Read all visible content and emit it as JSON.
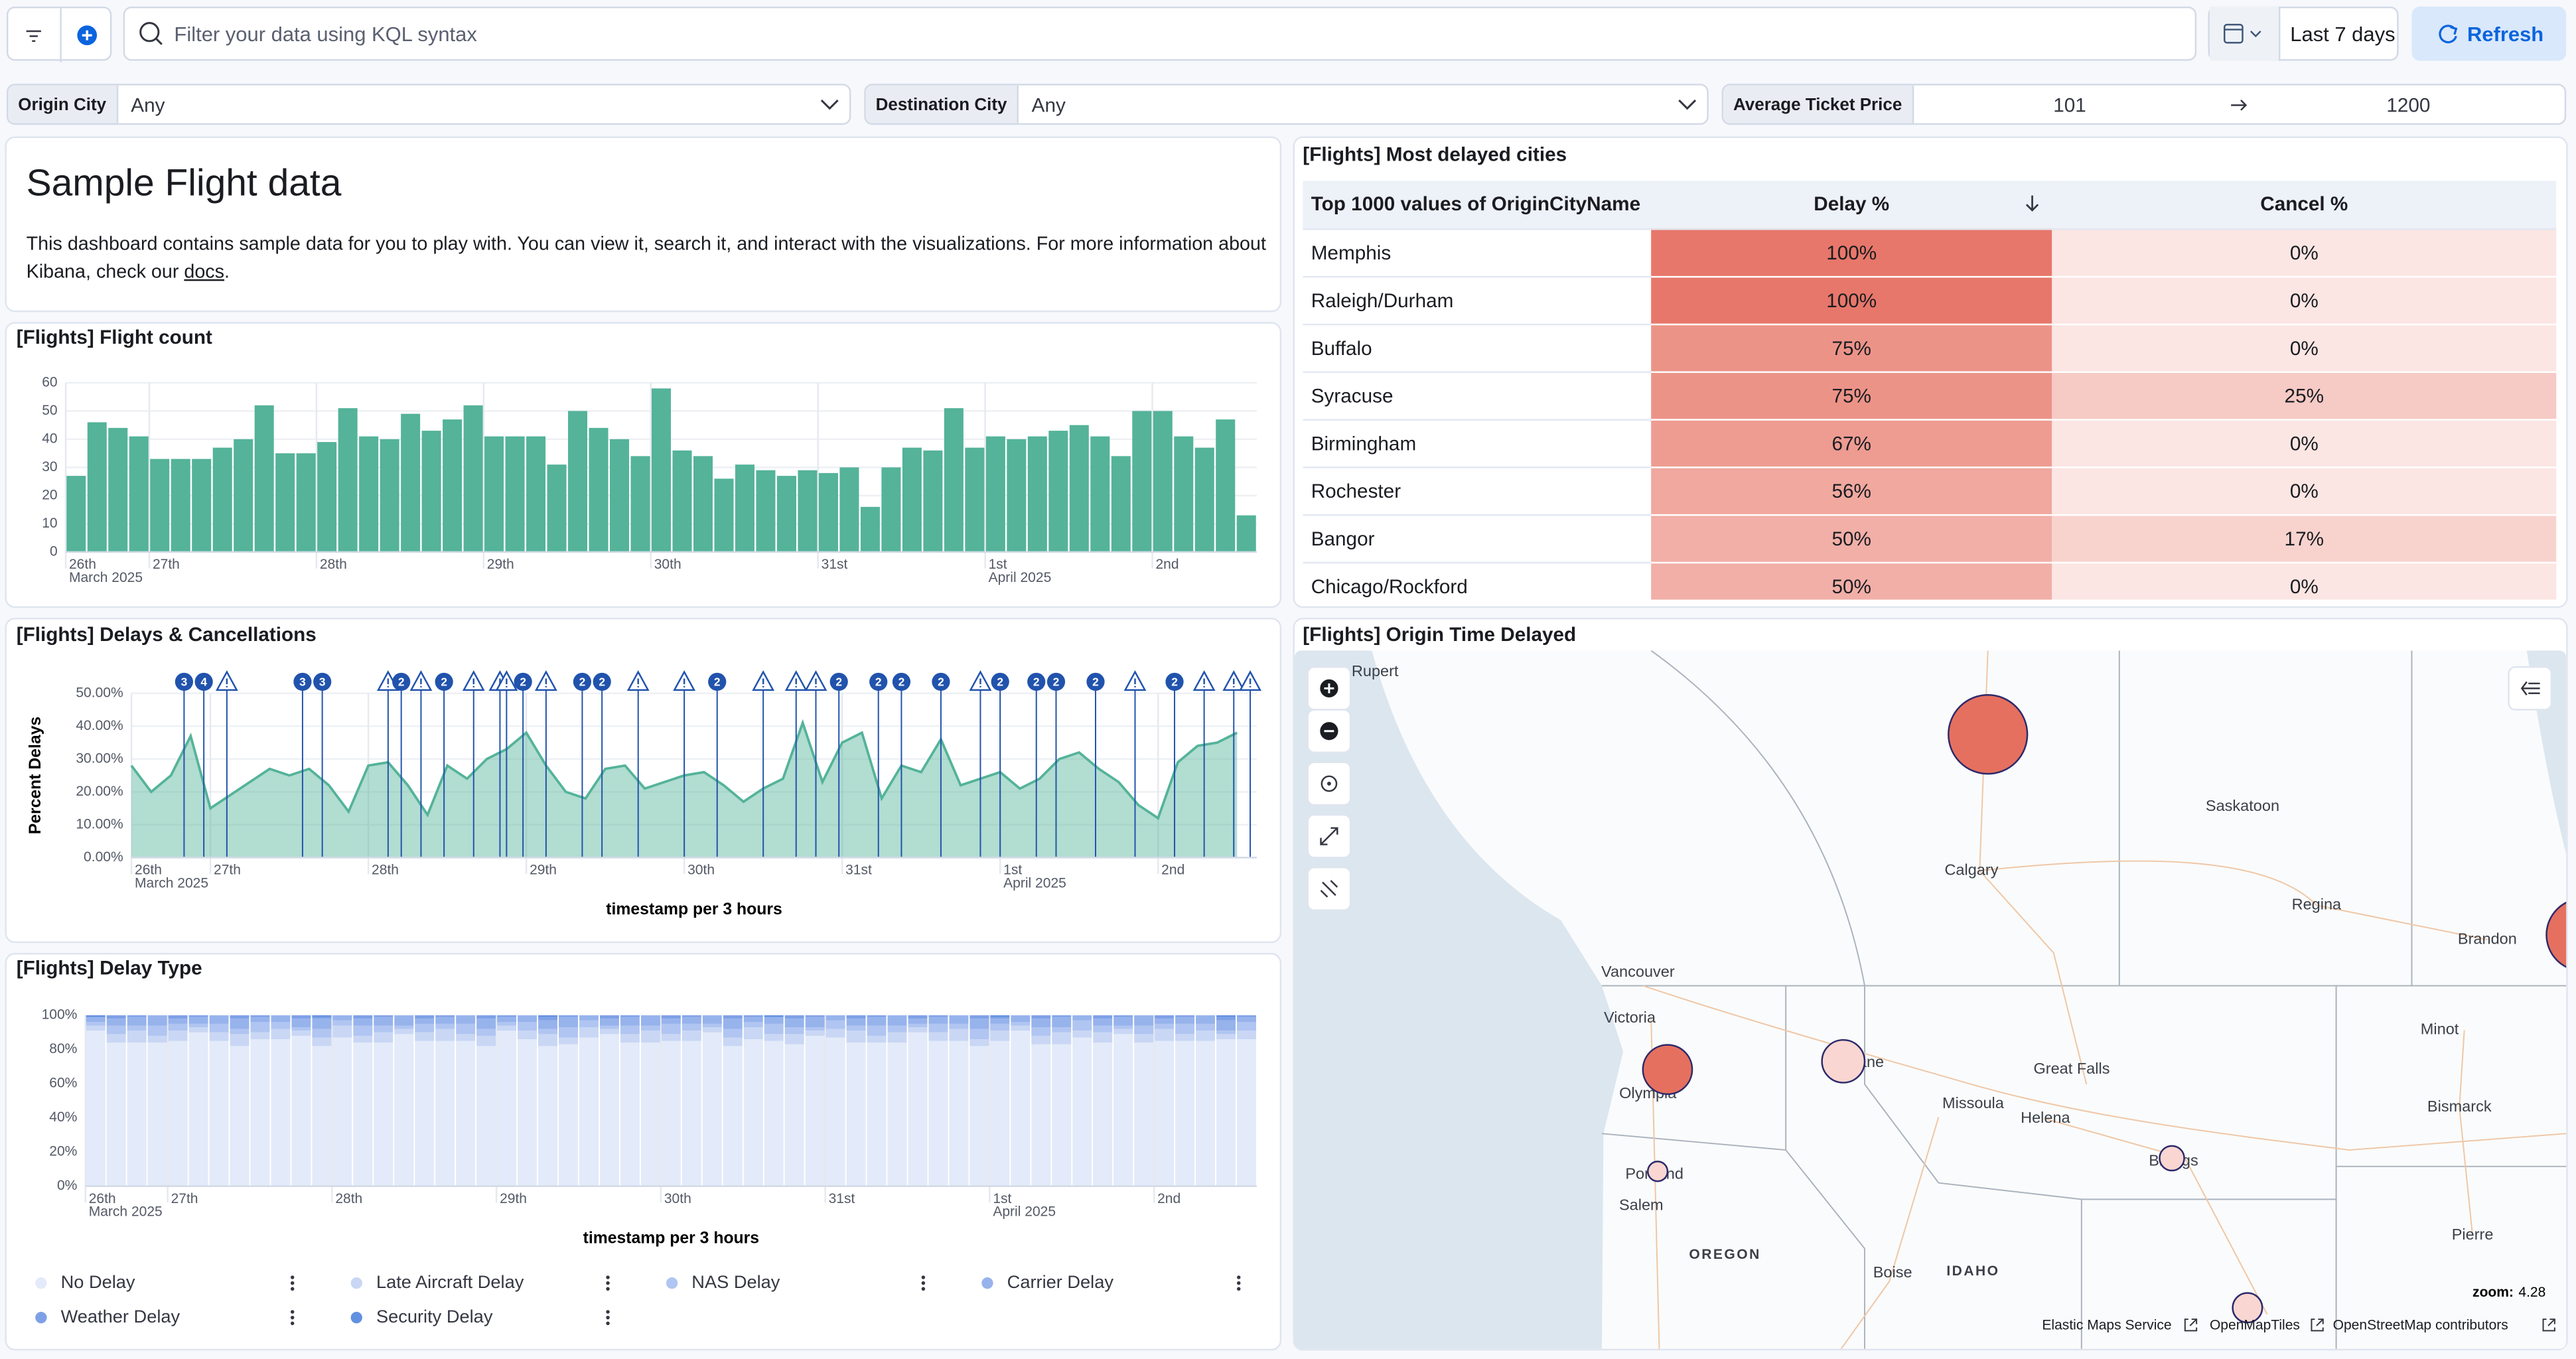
{
  "toolbar": {
    "query_placeholder": "Filter your data using KQL syntax",
    "time_range": "Last 7 days",
    "refresh": "Refresh"
  },
  "controls": {
    "origin_city": {
      "label": "Origin City",
      "value": "Any"
    },
    "destination_city": {
      "label": "Destination City",
      "value": "Any"
    },
    "ticket_price": {
      "label": "Average Ticket Price",
      "min": 101,
      "max": 1200
    }
  },
  "markdown": {
    "title": "Sample Flight data",
    "text": "This dashboard contains sample data for you to play with. You can view it, search it, and interact with the visualizations. For more information about Kibana, check our ",
    "link": "docs",
    "end": "."
  },
  "chart_data": [
    {
      "type": "bar",
      "title": "[Flights] Flight count",
      "x": [
        12,
        15,
        18,
        21,
        24,
        27,
        30,
        33,
        36,
        39,
        42,
        45,
        48,
        51,
        54,
        57,
        60,
        63,
        66,
        69,
        72,
        75,
        78,
        81,
        84,
        87,
        90,
        93,
        96,
        99,
        102,
        105,
        108,
        111,
        114,
        117,
        120,
        123,
        126,
        129,
        132,
        135,
        138,
        141,
        144,
        147,
        150,
        153,
        156,
        159,
        162,
        165,
        168,
        171,
        174,
        177,
        180
      ],
      "values": [
        27,
        46,
        44,
        41,
        33,
        33,
        33,
        37,
        40,
        52,
        35,
        35,
        39,
        51,
        41,
        40,
        49,
        43,
        47,
        52,
        41,
        41,
        41,
        31,
        50,
        44,
        40,
        34,
        58,
        36,
        34,
        26,
        31,
        29,
        27,
        29,
        28,
        30,
        16,
        30,
        37,
        36,
        51,
        37,
        41,
        40,
        41,
        43,
        45,
        41,
        34,
        50,
        50,
        41,
        37,
        47,
        13
      ],
      "color": "#54b399",
      "xlim": [
        12,
        183
      ],
      "xticks": [
        {
          "value": 12,
          "label": "26th"
        },
        {
          "value": 24,
          "label": "27th"
        },
        {
          "value": 48,
          "label": "28th"
        },
        {
          "value": 72,
          "label": "29th"
        },
        {
          "value": 96,
          "label": "30th"
        },
        {
          "value": 120,
          "label": "31st"
        },
        {
          "value": 144,
          "label": "1st"
        },
        {
          "value": 168,
          "label": "2nd"
        }
      ],
      "xtick_sublabels": [
        {
          "value": 12,
          "label": "March 2025"
        },
        {
          "value": 144,
          "label": "April 2025"
        }
      ],
      "ylim": [
        0,
        60
      ],
      "yticks": [
        0,
        10,
        20,
        30,
        40,
        50,
        60
      ],
      "grid": true
    },
    {
      "type": "area",
      "title": "[Flights] Delays & Cancellations",
      "x": [
        12,
        15,
        18,
        21,
        24,
        27,
        30,
        33,
        36,
        39,
        42,
        45,
        48,
        51,
        54,
        57,
        60,
        63,
        66,
        69,
        72,
        75,
        78,
        81,
        84,
        87,
        90,
        93,
        96,
        99,
        102,
        105,
        108,
        111,
        114,
        117,
        120,
        123,
        126,
        129,
        132,
        135,
        138,
        141,
        144,
        147,
        150,
        153,
        156,
        159,
        162,
        165,
        168,
        171,
        174,
        177,
        180
      ],
      "values": [
        28,
        20,
        25,
        37,
        15,
        19,
        23,
        27,
        25,
        27,
        22,
        14,
        28,
        29,
        22,
        13,
        28,
        24,
        30,
        33,
        38,
        28,
        20,
        18,
        27,
        28,
        21,
        23,
        25,
        26,
        22,
        17,
        21,
        24,
        41,
        23,
        35,
        38,
        18,
        28,
        26,
        36,
        22,
        24,
        26,
        21,
        24,
        30,
        32,
        27,
        23,
        16,
        12,
        29,
        34,
        35,
        38
      ],
      "color": "#54b399",
      "xlim": [
        12,
        183
      ],
      "xticks": [
        {
          "value": 12,
          "label": "26th"
        },
        {
          "value": 24,
          "label": "27th"
        },
        {
          "value": 48,
          "label": "28th"
        },
        {
          "value": 72,
          "label": "29th"
        },
        {
          "value": 96,
          "label": "30th"
        },
        {
          "value": 120,
          "label": "31st"
        },
        {
          "value": 144,
          "label": "1st"
        },
        {
          "value": 168,
          "label": "2nd"
        }
      ],
      "xtick_sublabels": [
        {
          "value": 12,
          "label": "March 2025"
        },
        {
          "value": 144,
          "label": "April 2025"
        }
      ],
      "ylim": [
        0,
        50
      ],
      "yticks": [
        {
          "value": 0,
          "label": "0.00%"
        },
        {
          "value": 10,
          "label": "10.00%"
        },
        {
          "value": 20,
          "label": "20.00%"
        },
        {
          "value": 30,
          "label": "30.00%"
        },
        {
          "value": 40,
          "label": "40.00%"
        },
        {
          "value": 50,
          "label": "50.00%"
        }
      ],
      "grid": true,
      "ylabel": "Percent Delays",
      "xlabel": "timestamp per 3 hours",
      "annotation_color": "#2153ad",
      "annotations": {
        "x": [
          20,
          23,
          26.5,
          38,
          41,
          51,
          53,
          56,
          59.5,
          64,
          68,
          69,
          71.5,
          75,
          80.5,
          83.5,
          89,
          96,
          101,
          108,
          113,
          116,
          119.5,
          125.5,
          129,
          135,
          141,
          144,
          149.5,
          152.5,
          158.5,
          164.5,
          170.5,
          175,
          179.5,
          182
        ],
        "labels": [
          3,
          4,
          null,
          3,
          3,
          null,
          2,
          null,
          2,
          null,
          null,
          null,
          2,
          null,
          2,
          2,
          null,
          null,
          2,
          null,
          null,
          null,
          2,
          2,
          2,
          2,
          null,
          2,
          2,
          2,
          2,
          null,
          2,
          null,
          null,
          null
        ]
      }
    },
    {
      "type": "stacked_bar",
      "title": "[Flights] Delay Type",
      "x": [
        12,
        15,
        18,
        21,
        24,
        27,
        30,
        33,
        36,
        39,
        42,
        45,
        48,
        51,
        54,
        57,
        60,
        63,
        66,
        69,
        72,
        75,
        78,
        81,
        84,
        87,
        90,
        93,
        96,
        99,
        102,
        105,
        108,
        111,
        114,
        117,
        120,
        123,
        126,
        129,
        132,
        135,
        138,
        141,
        144,
        147,
        150,
        153,
        156,
        159,
        162,
        165,
        168,
        171,
        174,
        177,
        180
      ],
      "xlim": [
        12,
        183
      ],
      "xticks": [
        {
          "value": 12,
          "label": "26th"
        },
        {
          "value": 24,
          "label": "27th"
        },
        {
          "value": 48,
          "label": "28th"
        },
        {
          "value": 72,
          "label": "29th"
        },
        {
          "value": 96,
          "label": "30th"
        },
        {
          "value": 120,
          "label": "31st"
        },
        {
          "value": 144,
          "label": "1st"
        },
        {
          "value": 168,
          "label": "2nd"
        }
      ],
      "xtick_sublabels": [
        {
          "value": 12,
          "label": "March 2025"
        },
        {
          "value": 144,
          "label": "April 2025"
        }
      ],
      "ylim": [
        0,
        100
      ],
      "yticks": [
        {
          "value": 0,
          "label": "0%"
        },
        {
          "value": 20,
          "label": "20%"
        },
        {
          "value": 40,
          "label": "40%"
        },
        {
          "value": 60,
          "label": "60%"
        },
        {
          "value": 80,
          "label": "80%"
        },
        {
          "value": 100,
          "label": "100%"
        }
      ],
      "xlabel": "timestamp per 3 hours",
      "legend": "bottom",
      "series": [
        {
          "name": "No Delay",
          "color": "#e3eaf9",
          "values": [
            91,
            84,
            84,
            84,
            85,
            90,
            85,
            82,
            86,
            86,
            88,
            82,
            87,
            84,
            84,
            89,
            85,
            85,
            85,
            82,
            91,
            86,
            82,
            83,
            87,
            89,
            84,
            84,
            85,
            85,
            90,
            82,
            86,
            85,
            83,
            88,
            87,
            84,
            84,
            84,
            90,
            85,
            85,
            82,
            85,
            91,
            83,
            83,
            87,
            84,
            89,
            84,
            85,
            85,
            85,
            86,
            86
          ]
        },
        {
          "name": "Late Aircraft Delay",
          "color": "#c9d7f5",
          "values": [
            3,
            5,
            7,
            4,
            6,
            3,
            5,
            7,
            4,
            6,
            3,
            5,
            7,
            4,
            6,
            3,
            5,
            7,
            4,
            6,
            3,
            5,
            7,
            4,
            6,
            3,
            5,
            7,
            4,
            6,
            3,
            5,
            7,
            4,
            6,
            3,
            5,
            7,
            4,
            6,
            3,
            5,
            7,
            4,
            6,
            3,
            5,
            7,
            4,
            6,
            3,
            5,
            7,
            4,
            6,
            3,
            5
          ]
        },
        {
          "name": "NAS Delay",
          "color": "#b0c5f1",
          "values": [
            2,
            5,
            3,
            6,
            4,
            2,
            5,
            3,
            6,
            4,
            2,
            5,
            3,
            6,
            4,
            2,
            5,
            3,
            6,
            4,
            2,
            5,
            3,
            6,
            4,
            2,
            5,
            3,
            6,
            4,
            2,
            5,
            3,
            6,
            4,
            2,
            5,
            3,
            6,
            4,
            2,
            5,
            3,
            6,
            4,
            2,
            5,
            3,
            6,
            4,
            2,
            5,
            3,
            6,
            4,
            2,
            5
          ]
        },
        {
          "name": "Carrier Delay",
          "color": "#97b3ec",
          "values": [
            3,
            4,
            5,
            6,
            3,
            4,
            5,
            6,
            3,
            4,
            5,
            6,
            3,
            4,
            5,
            6,
            3,
            4,
            5,
            6,
            3,
            4,
            5,
            6,
            3,
            4,
            5,
            6,
            3,
            4,
            5,
            6,
            3,
            4,
            5,
            6,
            3,
            4,
            5,
            6,
            3,
            4,
            5,
            6,
            3,
            4,
            5,
            6,
            3,
            4,
            5,
            6,
            3,
            4,
            5,
            6,
            3
          ]
        },
        {
          "name": "Weather Delay",
          "color": "#7ea1e6",
          "values": [
            0,
            2,
            1,
            0,
            2,
            1,
            0,
            2,
            1,
            0,
            2,
            1,
            0,
            2,
            1,
            0,
            2,
            1,
            0,
            2,
            1,
            0,
            2,
            1,
            0,
            2,
            1,
            0,
            2,
            1,
            0,
            2,
            1,
            0,
            2,
            1,
            0,
            2,
            1,
            0,
            2,
            1,
            0,
            2,
            1,
            0,
            2,
            1,
            0,
            2,
            1,
            0,
            2,
            1,
            0,
            2,
            1
          ]
        },
        {
          "name": "Security Delay",
          "color": "#6290e0",
          "values": [
            1,
            0,
            0,
            0,
            0,
            0,
            0,
            0,
            0,
            0,
            0,
            1,
            0,
            0,
            0,
            0,
            0,
            0,
            0,
            0,
            0,
            0,
            1,
            0,
            0,
            0,
            0,
            0,
            0,
            0,
            0,
            0,
            0,
            1,
            0,
            0,
            0,
            0,
            0,
            0,
            0,
            0,
            0,
            0,
            1,
            0,
            0,
            0,
            0,
            0,
            0,
            0,
            0,
            0,
            0,
            1,
            0
          ]
        }
      ]
    }
  ],
  "table": {
    "title": "[Flights] Most delayed cities",
    "columns": [
      "Top 1000 values of OriginCityName",
      "Delay %",
      "Cancel %"
    ],
    "rows": [
      {
        "city": "Memphis",
        "delay": 100,
        "delay_label": "100%",
        "cancel": 0,
        "cancel_label": "0%"
      },
      {
        "city": "Raleigh/Durham",
        "delay": 100,
        "delay_label": "100%",
        "cancel": 0,
        "cancel_label": "0%"
      },
      {
        "city": "Buffalo",
        "delay": 75,
        "delay_label": "75%",
        "cancel": 0,
        "cancel_label": "0%"
      },
      {
        "city": "Syracuse",
        "delay": 75,
        "delay_label": "75%",
        "cancel": 25,
        "cancel_label": "25%"
      },
      {
        "city": "Birmingham",
        "delay": 67,
        "delay_label": "67%",
        "cancel": 0,
        "cancel_label": "0%"
      },
      {
        "city": "Rochester",
        "delay": 56,
        "delay_label": "56%",
        "cancel": 0,
        "cancel_label": "0%"
      },
      {
        "city": "Bangor",
        "delay": 50,
        "delay_label": "50%",
        "cancel": 17,
        "cancel_label": "17%"
      },
      {
        "city": "Chicago/Rockford",
        "delay": 50,
        "delay_label": "50%",
        "cancel": 0,
        "cancel_label": "0%"
      }
    ]
  },
  "map": {
    "title": "[Flights] Origin Time Delayed",
    "labels": [
      "nce Rupert",
      "Calgary",
      "Saskatoon",
      "Regina",
      "Brandon",
      "Vancouver",
      "Victoria",
      "Olympia",
      "Spokane",
      "Missoula",
      "Great Falls",
      "Helena",
      "Minot",
      "Bismarck",
      "Billings",
      "Portland",
      "Salem",
      "OREGON",
      "Boise",
      "IDAHO",
      "Pierre"
    ],
    "zoom_label": "zoom:",
    "zoom": 4.28,
    "attribution": [
      "Elastic Maps Service",
      "OpenMapTiles",
      "OpenStreetMap contributors"
    ]
  }
}
